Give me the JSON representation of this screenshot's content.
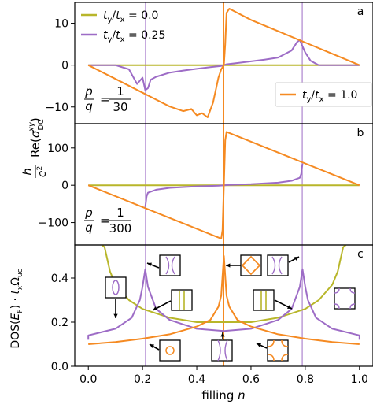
{
  "figure": {
    "ylabel_main": "h/e² Re(σ_DC^xy)",
    "ylabel_bottom": "DOS(E_F) · t_x Ω_uc",
    "xlabel": "filling n"
  },
  "colors": {
    "yellow": "#b8b62a",
    "purple": "#9d6cc6",
    "orange": "#f58a22",
    "axes": "#000000"
  },
  "chart_data": [
    {
      "panel": "a",
      "type": "line",
      "panel_label": "a",
      "annotation": {
        "p": "p",
        "q": "q",
        "num": "1",
        "den": "30"
      },
      "xlim": [
        -0.05,
        1.05
      ],
      "ylim": [
        -14,
        15
      ],
      "yticks": [
        {
          "v": -10,
          "label": "−10"
        },
        {
          "v": 0,
          "label": "0"
        },
        {
          "v": 10,
          "label": "10"
        }
      ],
      "legend": [
        {
          "name": "t_y/t_x = 0.0",
          "color_key": "yellow",
          "sub": "y",
          "sub2": "x",
          "value": " = 0.0",
          "placement": "top-left"
        },
        {
          "name": "t_y/t_x = 0.25",
          "color_key": "purple",
          "sub": "y",
          "sub2": "x",
          "value": " = 0.25",
          "placement": "top-left"
        },
        {
          "name": "t_y/t_x = 1.0",
          "color_key": "orange",
          "sub": "y",
          "sub2": "x",
          "value": " = 1.0",
          "placement": "bottom-right"
        }
      ],
      "series": [
        {
          "name": "t_y/t_x = 0.0",
          "color_key": "yellow",
          "x": [
            0.0,
            1.0
          ],
          "y": [
            0,
            0
          ]
        },
        {
          "name": "t_y/t_x = 0.25",
          "color_key": "purple",
          "x": [
            0.0,
            0.1,
            0.15,
            0.18,
            0.2,
            0.21,
            0.22,
            0.23,
            0.25,
            0.3,
            0.35,
            0.4,
            0.45,
            0.49,
            0.5,
            0.51,
            0.55,
            0.6,
            0.65,
            0.7,
            0.75,
            0.77,
            0.78,
            0.79,
            0.8,
            0.82,
            0.85,
            0.9,
            1.0
          ],
          "y": [
            0,
            0,
            -1.0,
            -4.5,
            -3.0,
            -6.0,
            -5.5,
            -3.5,
            -2.8,
            -1.8,
            -1.3,
            -0.9,
            -0.5,
            -0.2,
            0,
            0.2,
            0.5,
            0.9,
            1.3,
            1.8,
            3.5,
            5.5,
            6.0,
            4.5,
            3.0,
            1.0,
            0,
            0,
            0
          ]
        },
        {
          "name": "t_y/t_x = 1.0",
          "color_key": "orange",
          "x": [
            0.0,
            0.1,
            0.2,
            0.3,
            0.35,
            0.38,
            0.4,
            0.42,
            0.44,
            0.46,
            0.48,
            0.49,
            0.5,
            0.505,
            0.51,
            0.52,
            0.6,
            0.7,
            0.8,
            0.9,
            1.0
          ],
          "y": [
            0,
            -3.3,
            -6.6,
            -9.9,
            -11.0,
            -10.5,
            -12.0,
            -11.5,
            -12.5,
            -9.0,
            -3.0,
            -1.0,
            0,
            5.0,
            12.5,
            13.5,
            10.8,
            8.1,
            5.4,
            2.7,
            0
          ]
        }
      ]
    },
    {
      "panel": "b",
      "type": "line",
      "panel_label": "b",
      "annotation": {
        "p": "p",
        "q": "q",
        "num": "1",
        "den": "300"
      },
      "xlim": [
        -0.05,
        1.05
      ],
      "ylim": [
        -160,
        165
      ],
      "yticks": [
        {
          "v": -100,
          "label": "−100"
        },
        {
          "v": 0,
          "label": "0"
        },
        {
          "v": 100,
          "label": "100"
        }
      ],
      "series": [
        {
          "name": "t_y/t_x = 0.0",
          "color_key": "yellow",
          "x": [
            0.0,
            1.0
          ],
          "y": [
            0,
            0
          ]
        },
        {
          "name": "t_y/t_x = 0.25",
          "color_key": "purple",
          "x": [
            0.21,
            0.215,
            0.22,
            0.25,
            0.3,
            0.4,
            0.48,
            0.5,
            0.52,
            0.6,
            0.7,
            0.75,
            0.78,
            0.785,
            0.79
          ],
          "y": [
            -58,
            -30,
            -20,
            -12,
            -7,
            -3,
            -1,
            0,
            1,
            3,
            7,
            12,
            20,
            30,
            58
          ]
        },
        {
          "name": "t_y/t_x = 1.0",
          "color_key": "orange",
          "x": [
            0.0,
            0.25,
            0.49,
            0.495,
            0.5,
            0.505,
            0.51,
            0.75,
            1.0
          ],
          "y": [
            0,
            -73,
            -143,
            -120,
            0,
            120,
            143,
            73,
            0
          ]
        }
      ]
    },
    {
      "panel": "c",
      "type": "line",
      "panel_label": "c",
      "xlim": [
        -0.05,
        1.05
      ],
      "ylim": [
        0,
        0.55
      ],
      "yticks": [
        {
          "v": 0.0,
          "label": "0.0"
        },
        {
          "v": 0.2,
          "label": "0.2"
        },
        {
          "v": 0.4,
          "label": "0.4"
        }
      ],
      "xticks": [
        {
          "v": 0.0,
          "label": "0.0"
        },
        {
          "v": 0.2,
          "label": "0.2"
        },
        {
          "v": 0.4,
          "label": "0.4"
        },
        {
          "v": 0.6,
          "label": "0.6"
        },
        {
          "v": 0.8,
          "label": "0.8"
        },
        {
          "v": 1.0,
          "label": "1.0"
        }
      ],
      "series": [
        {
          "name": "t_y/t_x = 0.0",
          "color_key": "yellow",
          "x": [
            0.05,
            0.06,
            0.08,
            0.1,
            0.15,
            0.2,
            0.3,
            0.4,
            0.5,
            0.6,
            0.7,
            0.8,
            0.85,
            0.9,
            0.92,
            0.94,
            0.95
          ],
          "y": [
            0.55,
            0.54,
            0.43,
            0.37,
            0.3,
            0.26,
            0.22,
            0.2,
            0.2,
            0.2,
            0.22,
            0.26,
            0.3,
            0.37,
            0.43,
            0.54,
            0.55
          ]
        },
        {
          "name": "t_y/t_x = 0.25",
          "color_key": "purple",
          "x": [
            0.0,
            0.0,
            0.1,
            0.16,
            0.19,
            0.2,
            0.21,
            0.22,
            0.25,
            0.3,
            0.4,
            0.5,
            0.6,
            0.7,
            0.75,
            0.78,
            0.79,
            0.8,
            0.81,
            0.84,
            0.9,
            1.0,
            1.0
          ],
          "y": [
            0.12,
            0.14,
            0.17,
            0.22,
            0.3,
            0.36,
            0.44,
            0.36,
            0.26,
            0.21,
            0.17,
            0.16,
            0.17,
            0.21,
            0.26,
            0.36,
            0.44,
            0.36,
            0.3,
            0.22,
            0.17,
            0.14,
            0.12
          ]
        },
        {
          "name": "t_y/t_x = 1.0",
          "color_key": "orange",
          "x": [
            0.0,
            0.1,
            0.2,
            0.3,
            0.4,
            0.45,
            0.48,
            0.49,
            0.5,
            0.51,
            0.52,
            0.55,
            0.6,
            0.7,
            0.8,
            0.9,
            1.0
          ],
          "y": [
            0.1,
            0.11,
            0.125,
            0.145,
            0.18,
            0.21,
            0.27,
            0.32,
            0.5,
            0.32,
            0.27,
            0.21,
            0.18,
            0.145,
            0.125,
            0.11,
            0.1
          ]
        }
      ]
    }
  ],
  "vlines": [
    {
      "x": 0.5,
      "color_key": "orange"
    },
    {
      "x": 0.211,
      "color_key": "purple"
    },
    {
      "x": 0.789,
      "color_key": "purple"
    }
  ]
}
